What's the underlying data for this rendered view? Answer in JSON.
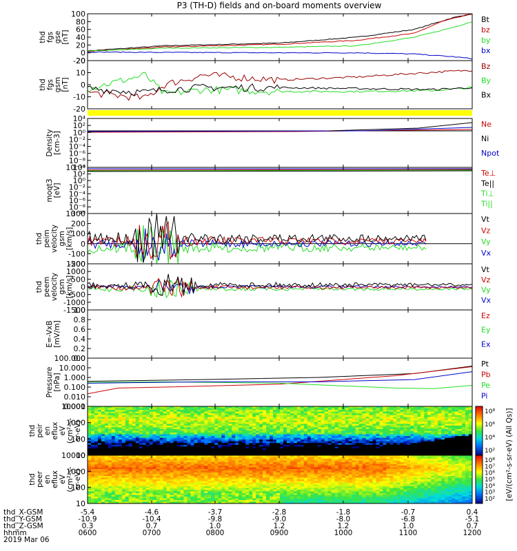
{
  "title": "P3 (TH-D) fields and on-board moments overview",
  "colors": {
    "black": "#000000",
    "red": "#cc0000",
    "green": "#22dd22",
    "blue": "#0000cc",
    "yellow": "#ffff00",
    "darkred": "#990000"
  },
  "chart_data": [
    {
      "type": "line",
      "panel": 1,
      "ylabel": [
        "thd",
        "fgs",
        "gse",
        "[nT]"
      ],
      "ylim": [
        -20,
        100
      ],
      "yticks": [
        "100",
        "80",
        "60",
        "40",
        "20",
        "0",
        "-20"
      ],
      "legend": [
        {
          "name": "Bt",
          "color": "#000000"
        },
        {
          "name": "bz",
          "color": "#cc0000"
        },
        {
          "name": "by",
          "color": "#22dd22"
        },
        {
          "name": "bx",
          "color": "#0000cc"
        }
      ],
      "series": [
        {
          "name": "Bt",
          "x": [
            0,
            0.2,
            0.5,
            0.7,
            0.85,
            0.95,
            1.0
          ],
          "values": [
            5,
            18,
            25,
            40,
            60,
            90,
            100
          ]
        },
        {
          "name": "bz",
          "x": [
            0,
            0.2,
            0.5,
            0.7,
            0.85,
            0.92,
            1.0
          ],
          "values": [
            3,
            15,
            22,
            32,
            50,
            80,
            100
          ]
        },
        {
          "name": "by",
          "x": [
            0,
            0.2,
            0.5,
            0.7,
            0.85,
            0.95,
            1.0
          ],
          "values": [
            4,
            12,
            14,
            18,
            40,
            65,
            80
          ]
        },
        {
          "name": "bx",
          "x": [
            0,
            0.2,
            0.5,
            0.7,
            0.85,
            0.95,
            1.0
          ],
          "values": [
            2,
            1,
            0,
            0,
            -3,
            -10,
            -15
          ]
        }
      ]
    },
    {
      "type": "line",
      "panel": 2,
      "ylabel": [
        "thd",
        "fgs",
        "gsm",
        "[nT]"
      ],
      "ylim": [
        -25,
        25
      ],
      "yticks": [
        "20",
        "10",
        "0",
        "-10",
        "-20"
      ],
      "legend": [
        {
          "name": "Bz",
          "color": "#990000"
        },
        {
          "name": "By",
          "color": "#22dd22"
        },
        {
          "name": "Bx",
          "color": "#000000"
        }
      ],
      "series": [
        {
          "name": "Bz",
          "x": [
            0,
            0.15,
            0.2,
            0.3,
            0.5,
            0.7,
            0.9,
            1.0
          ],
          "values": [
            -8,
            -14,
            0,
            10,
            5,
            8,
            13,
            15
          ]
        },
        {
          "name": "By",
          "x": [
            0,
            0.15,
            0.2,
            0.3,
            0.5,
            0.7,
            0.9,
            1.0
          ],
          "values": [
            -4,
            10,
            -10,
            -5,
            -7,
            -7,
            -6,
            -3
          ]
        },
        {
          "name": "Bx",
          "x": [
            0,
            0.15,
            0.2,
            0.3,
            0.5,
            0.7,
            0.9,
            1.0
          ],
          "values": [
            -4,
            -8,
            -5,
            -3,
            -3,
            -4,
            -5,
            -3
          ]
        }
      ]
    },
    {
      "type": "line",
      "panel": 3,
      "yscale": "log",
      "ylabel": [
        "Density",
        "[cm-3]"
      ],
      "yticks": [
        "10⁴",
        "10²",
        "10⁰",
        "10⁻²",
        "10⁻⁴",
        "10⁻⁶",
        "10⁻⁸",
        "10⁻¹⁰"
      ],
      "legend": [
        {
          "name": "Ne",
          "color": "#cc0000"
        },
        {
          "name": "Ni",
          "color": "#000000"
        },
        {
          "name": "Npot",
          "color": "#0000cc"
        }
      ]
    },
    {
      "type": "line",
      "panel": 4,
      "yscale": "log",
      "ylabel": [
        "moqt3",
        "[eV]"
      ],
      "yticks": [
        "10⁴",
        "10²",
        "10⁰",
        "10⁻²",
        "10⁻⁴",
        "10⁻⁶",
        "10⁻⁸",
        "10⁻¹⁰"
      ],
      "legend": [
        {
          "name": "Te⊥",
          "color": "#cc0000"
        },
        {
          "name": "Te||",
          "color": "#000000"
        },
        {
          "name": "Ti⊥",
          "color": "#22dd22"
        },
        {
          "name": "Ti||",
          "color": "#22dd22"
        }
      ]
    },
    {
      "type": "line",
      "panel": 5,
      "ylabel": [
        "thd",
        "peim",
        "velocity",
        "gsm",
        "[km/s]"
      ],
      "ylim": [
        -200,
        300
      ],
      "yticks": [
        "300",
        "200",
        "100",
        "0",
        "-100",
        "-200"
      ],
      "legend": [
        {
          "name": "Vt",
          "color": "#000000"
        },
        {
          "name": "Vz",
          "color": "#cc0000"
        },
        {
          "name": "Vy",
          "color": "#22dd22"
        },
        {
          "name": "Vx",
          "color": "#0000cc"
        }
      ]
    },
    {
      "type": "line",
      "panel": 6,
      "ylabel": [
        "thd",
        "peem",
        "velocity",
        "gsm",
        "[km/s]"
      ],
      "ylim": [
        -1500,
        1500
      ],
      "yticks": [
        "1500",
        "1000",
        "500",
        "0",
        "-500",
        "-1000",
        "-1500"
      ],
      "legend": [
        {
          "name": "Vt",
          "color": "#000000"
        },
        {
          "name": "Vz",
          "color": "#cc0000"
        },
        {
          "name": "Vy",
          "color": "#22dd22"
        },
        {
          "name": "Vx",
          "color": "#0000cc"
        }
      ]
    },
    {
      "type": "line",
      "panel": 7,
      "ylabel": [
        "E=-VxB",
        "[mV/m]"
      ],
      "ylim": [
        0,
        1
      ],
      "yticks": [
        "1.0",
        "0.8",
        "0.6",
        "0.4",
        "0.2",
        "0.0"
      ],
      "legend": [
        {
          "name": "Ez",
          "color": "#cc0000"
        },
        {
          "name": "Ey",
          "color": "#22dd22"
        },
        {
          "name": "Ex",
          "color": "#0000cc"
        }
      ]
    },
    {
      "type": "line",
      "panel": 8,
      "yscale": "log",
      "ylabel": [
        "Pressure",
        "[nPa]"
      ],
      "yticks": [
        "100.000",
        "10.000",
        "1.000",
        "0.100",
        "0.010",
        "0.001"
      ],
      "legend": [
        {
          "name": "Pt",
          "color": "#000000"
        },
        {
          "name": "Pb",
          "color": "#cc0000"
        },
        {
          "name": "Pe",
          "color": "#22dd22"
        },
        {
          "name": "Pi",
          "color": "#0000cc"
        }
      ]
    },
    {
      "type": "heatmap",
      "panel": 9,
      "ylabel": [
        "thd",
        "peir",
        "en",
        "eflux",
        "eV",
        "(cm²-s-",
        "sr-eV)"
      ],
      "yticks": [
        "10000",
        "1000",
        "100",
        "10"
      ]
    },
    {
      "type": "heatmap",
      "panel": 10,
      "ylabel": [
        "thd",
        "peer",
        "en",
        "eflux",
        "eV",
        "(cm²-s-",
        "sr-eV)"
      ],
      "yticks": [
        "10000",
        "1000",
        "100",
        "10"
      ]
    }
  ],
  "colorbar": {
    "label": "[eV/(cm²-s-sr-eV) (All Qs)]",
    "upper_ticks": [
      "10⁸",
      "10⁶",
      "10⁴",
      "10²"
    ],
    "lower_ticks": [
      "10⁸",
      "10⁷",
      "10⁶",
      "10⁵",
      "10⁴",
      "10³",
      "10²"
    ]
  },
  "x_axis": {
    "row_labels": [
      "thd_X-GSM",
      "thd_Y-GSM",
      "thd_Z-GSM",
      "hhmm",
      "2019 Mar 06"
    ],
    "columns": [
      [
        "-5.4",
        "-10.9",
        "0.3",
        "0600"
      ],
      [
        "-4.6",
        "-10.4",
        "0.7",
        "0700"
      ],
      [
        "-3.7",
        "-9.8",
        "1.0",
        "0800"
      ],
      [
        "-2.8",
        "-9.0",
        "1.2",
        "0900"
      ],
      [
        "-1.8",
        "-8.0",
        "1.2",
        "1000"
      ],
      [
        "-0.7",
        "-6.8",
        "1.0",
        "1100"
      ],
      [
        "0.4",
        "-5.1",
        "0.7",
        "1200"
      ]
    ]
  }
}
